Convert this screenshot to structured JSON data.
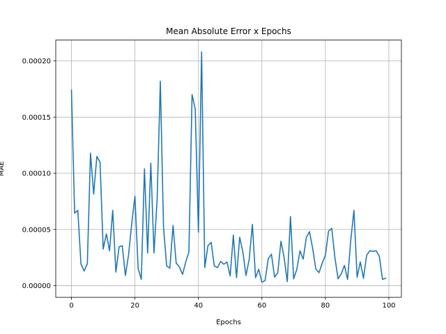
{
  "chart_data": {
    "type": "line",
    "title": "Mean Absolute Error x Epochs",
    "xlabel": "Epochs",
    "ylabel": "MAE",
    "xlim": [
      -4.95,
      103.95
    ],
    "ylim": [
      -1.04e-05,
      0.0002186
    ],
    "xticks": [
      0,
      20,
      40,
      60,
      80,
      100
    ],
    "xtick_labels": [
      "0",
      "20",
      "40",
      "60",
      "80",
      "100"
    ],
    "yticks": [
      0,
      5e-05,
      0.0001,
      0.00015,
      0.0002
    ],
    "ytick_labels": [
      "0.00000",
      "0.00005",
      "0.00010",
      "0.00015",
      "0.00020"
    ],
    "grid": true,
    "line_color": "#1f77b4",
    "series": [
      {
        "x": [
          0,
          1,
          2,
          3,
          4,
          5,
          6,
          7,
          8,
          9,
          10,
          11,
          12,
          13,
          14,
          15,
          16,
          17,
          18,
          19,
          20,
          21,
          22,
          23,
          24,
          25,
          26,
          27,
          28,
          29,
          30,
          31,
          32,
          33,
          34,
          35,
          36,
          37,
          38,
          39,
          40,
          41,
          42,
          43,
          44,
          45,
          46,
          47,
          48,
          49,
          50,
          51,
          52,
          53,
          54,
          55,
          56,
          57,
          58,
          59,
          60,
          61,
          62,
          63,
          64,
          65,
          66,
          67,
          68,
          69,
          70,
          71,
          72,
          73,
          74,
          75,
          76,
          77,
          78,
          79,
          80,
          81,
          82,
          83,
          84,
          85,
          86,
          87,
          88,
          89,
          90,
          91,
          92,
          93,
          94,
          95,
          96,
          97,
          98,
          99
        ],
        "values": [
          0.000174,
          6.45e-05,
          6.7e-05,
          1.92e-05,
          1.3e-05,
          1.95e-05,
          0.000118,
          8.15e-05,
          0.000115,
          0.00011,
          3.25e-05,
          4.6e-05,
          3.1e-05,
          6.7e-05,
          1.2e-05,
          3.45e-05,
          3.55e-05,
          9e-06,
          2.75e-05,
          5.55e-05,
          7.95e-05,
          1.55e-05,
          5.5e-06,
          0.000104,
          2.9e-05,
          0.000109,
          2.9e-05,
          7.75e-05,
          0.000182,
          5.2e-05,
          1.75e-05,
          1.55e-05,
          5.35e-05,
          2e-05,
          1.65e-05,
          1e-05,
          2.1e-05,
          3e-05,
          0.00017,
          0.000157,
          4.75e-05,
          0.000208,
          1.6e-05,
          3.55e-05,
          3.85e-05,
          1.75e-05,
          1.6e-05,
          2.15e-05,
          1.9e-05,
          2.1e-05,
          8.5e-06,
          4.5e-05,
          7e-06,
          4.3e-05,
          3e-05,
          9e-06,
          2.35e-05,
          5.45e-05,
          7e-06,
          1.45e-05,
          3e-06,
          4.5e-06,
          2.4e-05,
          2.8e-05,
          7.5e-06,
          1.15e-05,
          3.95e-05,
          2.5e-05,
          3.5e-06,
          6.15e-05,
          6e-06,
          1.45e-05,
          3.1e-05,
          2.35e-05,
          4.3e-05,
          4.8e-05,
          3.3e-05,
          1.45e-05,
          1.15e-05,
          2e-05,
          2.7e-05,
          4.85e-05,
          5.1e-05,
          2.5e-05,
          6e-06,
          1.05e-05,
          1.8e-05,
          5.5e-06,
          4.05e-05,
          6.7e-05,
          7.5e-06,
          2.1e-05,
          6.5e-06,
          2.7e-05,
          3.1e-05,
          3.05e-05,
          3.1e-05,
          2.6e-05,
          5.5e-06,
          6.5e-06
        ]
      }
    ]
  }
}
